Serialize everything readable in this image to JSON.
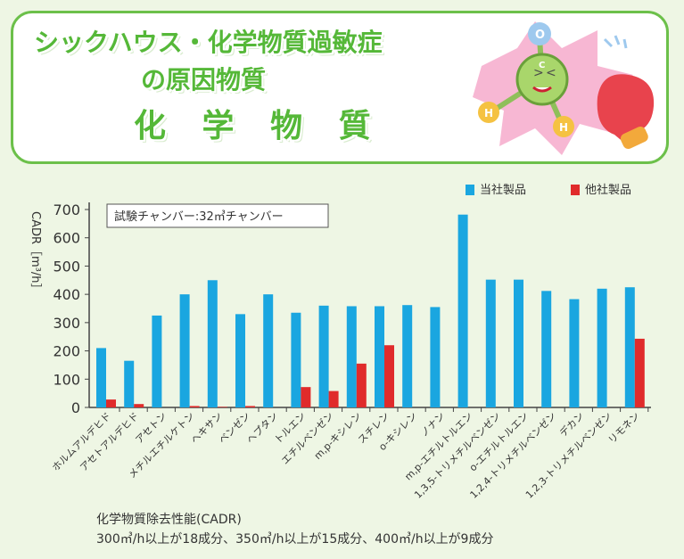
{
  "header": {
    "line1": "シックハウス・化学物質過敏症",
    "line2": "の原因物質",
    "line3": "化 学 物 質"
  },
  "illustration": {
    "labels": [
      "O",
      "C",
      "H",
      "H"
    ]
  },
  "colors": {
    "ours": "#1aa6e0",
    "others": "#e02b2b",
    "title_green": "#55b838",
    "frame_green": "#6cc04a"
  },
  "chart_data": {
    "type": "bar",
    "ylabel": "CADR［m³/h］",
    "ylim": [
      0,
      700
    ],
    "yticks": [
      0,
      100,
      200,
      300,
      400,
      500,
      600,
      700
    ],
    "annotation": "試験チャンバー:32㎥チャンバー",
    "legend_position": "top-right",
    "categories": [
      "ホルムアルデヒド",
      "アセトアルデヒド",
      "アセトン",
      "メチルエチルケトン",
      "ヘキサン",
      "ベンゼン",
      "ヘプタン",
      "トルエン",
      "エチルベンゼン",
      "m,p-キシレン",
      "スチレン",
      "o-キシレン",
      "ノナン",
      "m,p-エチルトルエン",
      "1,3,5-トリメチルベンゼン",
      "o-エチルトルエン",
      "1,2,4-トリメチルベンゼン",
      "デカン",
      "1,2,3-トリメチルベンゼン",
      "リモネン"
    ],
    "series": [
      {
        "name": "当社製品",
        "values": [
          210,
          165,
          325,
          400,
          450,
          330,
          400,
          335,
          360,
          358,
          358,
          362,
          355,
          682,
          452,
          452,
          412,
          383,
          420,
          425
        ]
      },
      {
        "name": "他社製品",
        "values": [
          28,
          12,
          null,
          5,
          2,
          5,
          null,
          72,
          58,
          155,
          220,
          null,
          null,
          null,
          null,
          null,
          null,
          null,
          null,
          243
        ]
      }
    ]
  },
  "footnote": {
    "line1": "化学物質除去性能(CADR)",
    "line2": "300㎥/h以上が18成分、350㎥/h以上が15成分、400㎥/h以上が9成分"
  }
}
